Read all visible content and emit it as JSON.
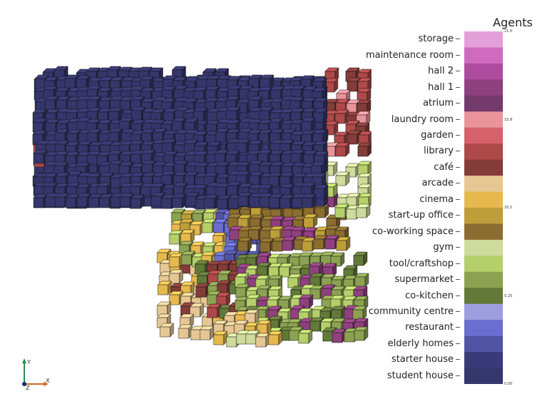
{
  "legend": {
    "title": "Agents",
    "categories": [
      {
        "label": "storage",
        "color": "#e3a0d8"
      },
      {
        "label": "maintenance room",
        "color": "#cf6bbf"
      },
      {
        "label": "hall 2",
        "color": "#ad4c9e"
      },
      {
        "label": "hall 1",
        "color": "#8f407e"
      },
      {
        "label": "atrium",
        "color": "#733a6b"
      },
      {
        "label": "laundry room",
        "color": "#e8949a"
      },
      {
        "label": "garden",
        "color": "#d6616b"
      },
      {
        "label": "library",
        "color": "#ad4949"
      },
      {
        "label": "café",
        "color": "#843c39"
      },
      {
        "label": "arcade",
        "color": "#e6c794"
      },
      {
        "label": "cinema",
        "color": "#e6b94f"
      },
      {
        "label": "start-up office",
        "color": "#bd9e39"
      },
      {
        "label": "co-working space",
        "color": "#8c6d31"
      },
      {
        "label": "gym",
        "color": "#cedb9c"
      },
      {
        "label": "tool/craftshop",
        "color": "#b5cf6b"
      },
      {
        "label": "supermarket",
        "color": "#8ca252"
      },
      {
        "label": "co-kitchen",
        "color": "#637939"
      },
      {
        "label": "community centre",
        "color": "#9c9ede"
      },
      {
        "label": "restaurant",
        "color": "#6b6ecf"
      },
      {
        "label": "elderly homes",
        "color": "#5254a3"
      },
      {
        "label": "starter house",
        "color": "#393b79"
      },
      {
        "label": "student house",
        "color": "#35366b"
      }
    ],
    "ticks": [
      "21.0",
      "15.8",
      "10.5",
      "5.25",
      "0.00"
    ]
  },
  "axes": {
    "y_label": "Y",
    "x_label": "X",
    "z_label": "Z",
    "y_color": "#2e8b57",
    "x_color": "#d2691e"
  }
}
